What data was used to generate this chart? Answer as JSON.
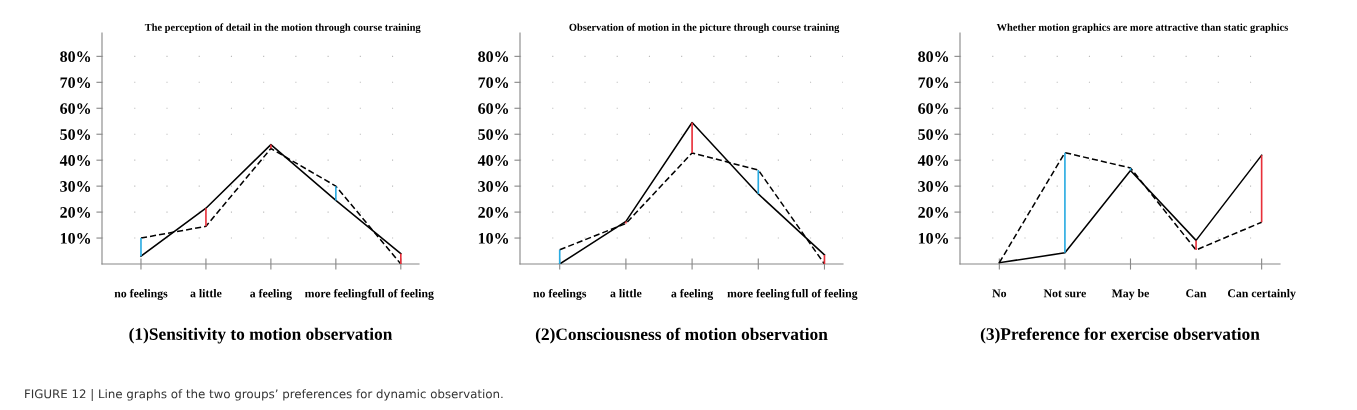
{
  "chart_data": [
    {
      "type": "line",
      "title": "The perception of detail in the motion through course training",
      "xlabel": "(1)Sensitivity to motion observation",
      "categories": [
        "no feelings",
        "a little",
        "a feeling",
        "more feeling",
        "full of feeling"
      ],
      "series": [
        {
          "color": "#000000",
          "line_style": "solid",
          "values": [
            3,
            21.5,
            46,
            24.5,
            4
          ]
        },
        {
          "color": "#000000",
          "line_style": "dashed",
          "values": [
            10,
            14.5,
            44.5,
            30,
            0
          ]
        },
        {
          "type": "bar",
          "colors": [
            "#29abe2",
            "#e8303a",
            "#e8303a",
            "#29abe2",
            "#e8303a"
          ],
          "base": [
            3,
            14.5,
            44.5,
            24.5,
            0
          ],
          "values": [
            7,
            7,
            1.5,
            5.5,
            4
          ]
        }
      ],
      "ylim": [
        0,
        89
      ],
      "yticks": [
        {
          "value": 10,
          "label": "10%"
        },
        {
          "value": 20,
          "label": "20%"
        },
        {
          "value": 30,
          "label": "30%"
        },
        {
          "value": 40,
          "label": "40%"
        },
        {
          "value": 50,
          "label": "50%"
        },
        {
          "value": 60,
          "label": "60%"
        },
        {
          "value": 70,
          "label": "70%"
        },
        {
          "value": 80,
          "label": "80%"
        }
      ],
      "grid": "y",
      "legend": false,
      "marker": "none",
      "annotations": [
        "FIGURE 12 | Line graphs of the two groups’ preferences for dynamic observation."
      ]
    },
    {
      "type": "line",
      "title": "Observation of motion in the picture through course training",
      "xlabel": "(2)Consciousness of motion observation",
      "categories": [
        "no feelings",
        "a little",
        "a feeling",
        "more feeling",
        "full of feeling"
      ],
      "series": [
        {
          "color": "#000000",
          "line_style": "solid",
          "values": [
            0,
            16.4,
            54.5,
            27,
            3.5
          ]
        },
        {
          "color": "#000000",
          "line_style": "dashed",
          "values": [
            5.5,
            15.6,
            42.8,
            36.2,
            0
          ]
        },
        {
          "type": "bar",
          "colors": [
            "#29abe2",
            "#e8303a",
            "#e8303a",
            "#29abe2",
            "#e8303a"
          ],
          "base": [
            0,
            15.6,
            42.8,
            27,
            0
          ],
          "values": [
            5.5,
            0.8,
            11.7,
            9.2,
            3.5
          ]
        }
      ],
      "ylim": [
        0,
        89
      ],
      "yticks": [
        {
          "value": 10,
          "label": "10%"
        },
        {
          "value": 20,
          "label": "20%"
        },
        {
          "value": 30,
          "label": "30%"
        },
        {
          "value": 40,
          "label": "40%"
        },
        {
          "value": 50,
          "label": "50%"
        },
        {
          "value": 60,
          "label": "60%"
        },
        {
          "value": 70,
          "label": "70%"
        },
        {
          "value": 80,
          "label": "80%"
        }
      ],
      "grid": "y",
      "legend": false,
      "marker": "none"
    },
    {
      "type": "line",
      "title": "Whether motion graphics are more attractive than static graphics",
      "xlabel": "(3)Preference for exercise observation",
      "categories": [
        "No",
        "Not sure",
        "May be",
        "Can",
        "Can certainly"
      ],
      "series": [
        {
          "color": "#000000",
          "line_style": "solid",
          "values": [
            0.5,
            4.3,
            36,
            9.1,
            41.9
          ]
        },
        {
          "color": "#000000",
          "line_style": "dashed",
          "values": [
            0.5,
            42.9,
            37,
            5.4,
            16.1
          ]
        },
        {
          "type": "bar",
          "colors": [
            "#29abe2",
            "#29abe2",
            "#29abe2",
            "#e8303a",
            "#e8303a"
          ],
          "base": [
            null,
            4.3,
            36,
            5.4,
            16.1
          ],
          "values": [
            null,
            38.6,
            1,
            3.7,
            25.8
          ]
        }
      ],
      "ylim": [
        0,
        89
      ],
      "yticks": [
        {
          "value": 10,
          "label": "10%"
        },
        {
          "value": 20,
          "label": "20%"
        },
        {
          "value": 30,
          "label": "30%"
        },
        {
          "value": 40,
          "label": "40%"
        },
        {
          "value": 50,
          "label": "50%"
        },
        {
          "value": 60,
          "label": "60%"
        },
        {
          "value": 70,
          "label": "70%"
        },
        {
          "value": 80,
          "label": "80%"
        }
      ],
      "grid": "y",
      "legend": false,
      "marker": "none"
    }
  ]
}
